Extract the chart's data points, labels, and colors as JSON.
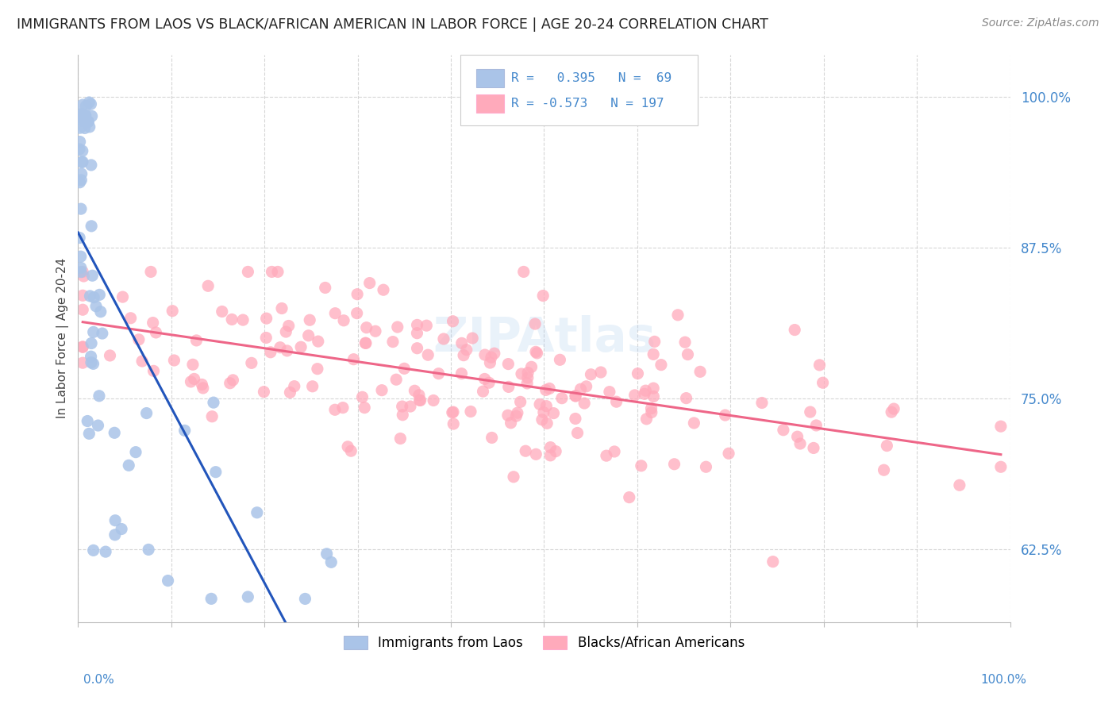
{
  "title": "IMMIGRANTS FROM LAOS VS BLACK/AFRICAN AMERICAN IN LABOR FORCE | AGE 20-24 CORRELATION CHART",
  "source": "Source: ZipAtlas.com",
  "ylabel": "In Labor Force | Age 20-24",
  "ylabel_ticks": [
    "62.5%",
    "75.0%",
    "87.5%",
    "100.0%"
  ],
  "ylabel_tick_vals": [
    0.625,
    0.75,
    0.875,
    1.0
  ],
  "legend_label1": "Immigrants from Laos",
  "legend_label2": "Blacks/African Americans",
  "r1": 0.395,
  "n1": 69,
  "r2": -0.573,
  "n2": 197,
  "color_blue_fill": "#AAC4E8",
  "color_blue_edge": "#6699CC",
  "color_pink_fill": "#FFAABB",
  "color_pink_edge": "#FF88AA",
  "color_line_blue": "#2255BB",
  "color_line_pink": "#EE6688",
  "watermark_color": "#AACCEE",
  "grid_color": "#CCCCCC",
  "title_color": "#222222",
  "source_color": "#888888",
  "tick_color": "#4488CC",
  "xlabel_color": "#4488CC"
}
